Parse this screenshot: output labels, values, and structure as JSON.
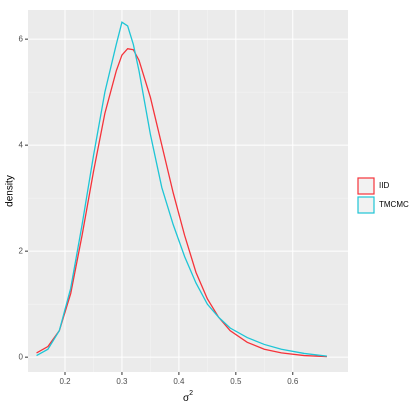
{
  "chart_data": {
    "type": "line",
    "xlabel": "σ",
    "xlabel_superscript": "2",
    "ylabel": "density",
    "x": [
      0.15,
      0.17,
      0.19,
      0.21,
      0.23,
      0.25,
      0.27,
      0.29,
      0.3,
      0.31,
      0.32,
      0.33,
      0.35,
      0.37,
      0.39,
      0.41,
      0.43,
      0.45,
      0.47,
      0.49,
      0.52,
      0.55,
      0.58,
      0.62,
      0.66
    ],
    "series": [
      {
        "name": "IID",
        "color": "#f5333a",
        "values": [
          0.08,
          0.2,
          0.5,
          1.2,
          2.3,
          3.5,
          4.6,
          5.4,
          5.7,
          5.82,
          5.8,
          5.6,
          4.9,
          4.0,
          3.1,
          2.3,
          1.6,
          1.1,
          0.75,
          0.5,
          0.28,
          0.15,
          0.08,
          0.03,
          0.01
        ]
      },
      {
        "name": "TMCMC",
        "color": "#1ec5d6",
        "values": [
          0.03,
          0.15,
          0.5,
          1.3,
          2.5,
          3.8,
          5.0,
          5.9,
          6.32,
          6.25,
          5.9,
          5.4,
          4.2,
          3.2,
          2.5,
          1.9,
          1.4,
          1.0,
          0.75,
          0.55,
          0.37,
          0.24,
          0.15,
          0.07,
          0.02
        ]
      }
    ],
    "xlim": [
      0.135,
      0.697
    ],
    "xticks": [
      0.2,
      0.3,
      0.4,
      0.5,
      0.6
    ],
    "ylim": [
      -0.28,
      6.55
    ],
    "yticks": [
      0,
      2,
      4,
      6
    ],
    "grid": true,
    "legend": "right"
  }
}
